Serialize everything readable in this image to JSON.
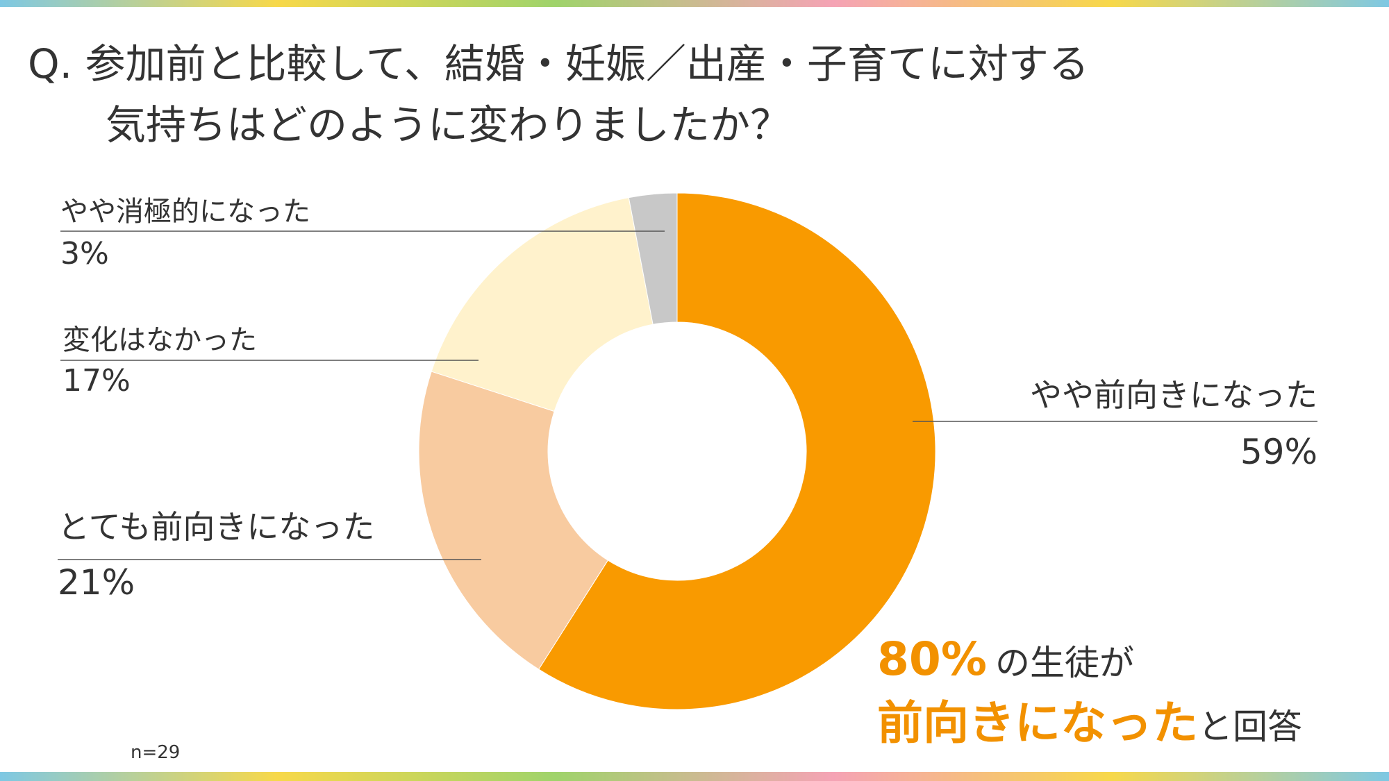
{
  "chart_data": {
    "type": "donut",
    "title": [
      "Q. 参加前と比較して、結婚・妊娠／出産・子育てに対する",
      "気持ちはどのように変わりましたか？"
    ],
    "categories": [
      "やや前向きになった",
      "とても前向きになった",
      "変化はなかった",
      "やや消極的になった"
    ],
    "values": [
      59,
      21,
      17,
      3
    ],
    "value_labels": [
      "59%",
      "21%",
      "17%",
      "3%"
    ],
    "colors": [
      "#f99a00",
      "#f8cba0",
      "#fff2cc",
      "#c8c8c8"
    ],
    "annotation": [
      "80%",
      "の生徒が",
      "前向きになった",
      "と回答"
    ],
    "note": "n=29"
  }
}
